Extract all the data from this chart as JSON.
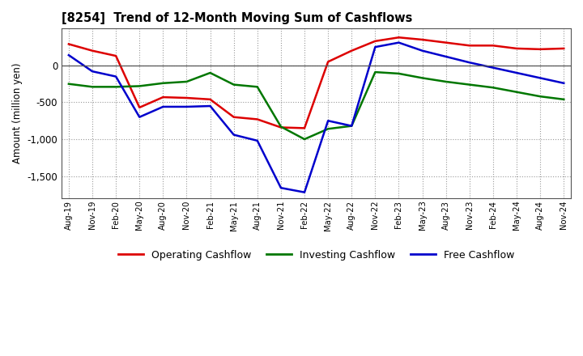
{
  "title": "[8254]  Trend of 12-Month Moving Sum of Cashflows",
  "ylabel": "Amount (million yen)",
  "background_color": "#ffffff",
  "grid_color": "#999999",
  "x_labels": [
    "Aug-19",
    "Nov-19",
    "Feb-20",
    "May-20",
    "Aug-20",
    "Nov-20",
    "Feb-21",
    "May-21",
    "Aug-21",
    "Nov-21",
    "Feb-22",
    "May-22",
    "Aug-22",
    "Nov-22",
    "Feb-23",
    "May-23",
    "Aug-23",
    "Nov-23",
    "Feb-24",
    "May-24",
    "Aug-24",
    "Nov-24"
  ],
  "operating": [
    290,
    200,
    130,
    -570,
    -430,
    -440,
    -460,
    -700,
    -730,
    -840,
    -850,
    50,
    200,
    330,
    380,
    350,
    310,
    270,
    270,
    230,
    220,
    230
  ],
  "investing": [
    -250,
    -290,
    -290,
    -280,
    -240,
    -220,
    -100,
    -260,
    -290,
    -830,
    -1000,
    -860,
    -820,
    -90,
    -110,
    -170,
    -220,
    -260,
    -300,
    -360,
    -420,
    -460
  ],
  "free": [
    140,
    -80,
    -150,
    -700,
    -560,
    -560,
    -550,
    -940,
    -1020,
    -1660,
    -1720,
    -750,
    -820,
    250,
    310,
    200,
    120,
    40,
    -30,
    -100,
    -170,
    -240
  ],
  "ylim": [
    -1800,
    500
  ],
  "yticks": [
    0,
    -500,
    -1000,
    -1500
  ],
  "line_colors": {
    "operating": "#dd0000",
    "investing": "#007700",
    "free": "#0000cc"
  },
  "legend_labels": [
    "Operating Cashflow",
    "Investing Cashflow",
    "Free Cashflow"
  ]
}
